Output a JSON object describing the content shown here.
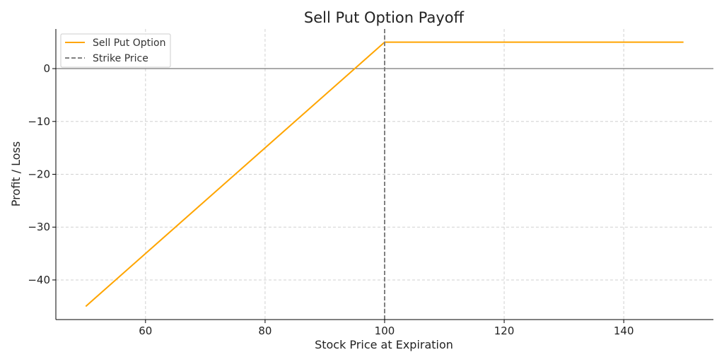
{
  "chart_data": {
    "type": "line",
    "title": "Sell Put Option Payoff",
    "xlabel": "Stock Price at Expiration",
    "ylabel": "Profit / Loss",
    "xlim": [
      45,
      155
    ],
    "ylim": [
      -47.5,
      7.5
    ],
    "xticks": [
      60,
      80,
      100,
      120,
      140
    ],
    "yticks": [
      0,
      -10,
      -20,
      -30,
      -40
    ],
    "ytick_labels": [
      "0",
      "−10",
      "−20",
      "−30",
      "−40"
    ],
    "grid": true,
    "zero_line": 0,
    "series": [
      {
        "name": "Sell Put Option",
        "color": "#FFA500",
        "x": [
          50,
          100,
          150
        ],
        "y": [
          -45,
          5,
          5
        ]
      }
    ],
    "strike": {
      "name": "Strike Price",
      "x": 100,
      "color": "#808080",
      "style": "dashed"
    },
    "legend_position": "top-left"
  }
}
